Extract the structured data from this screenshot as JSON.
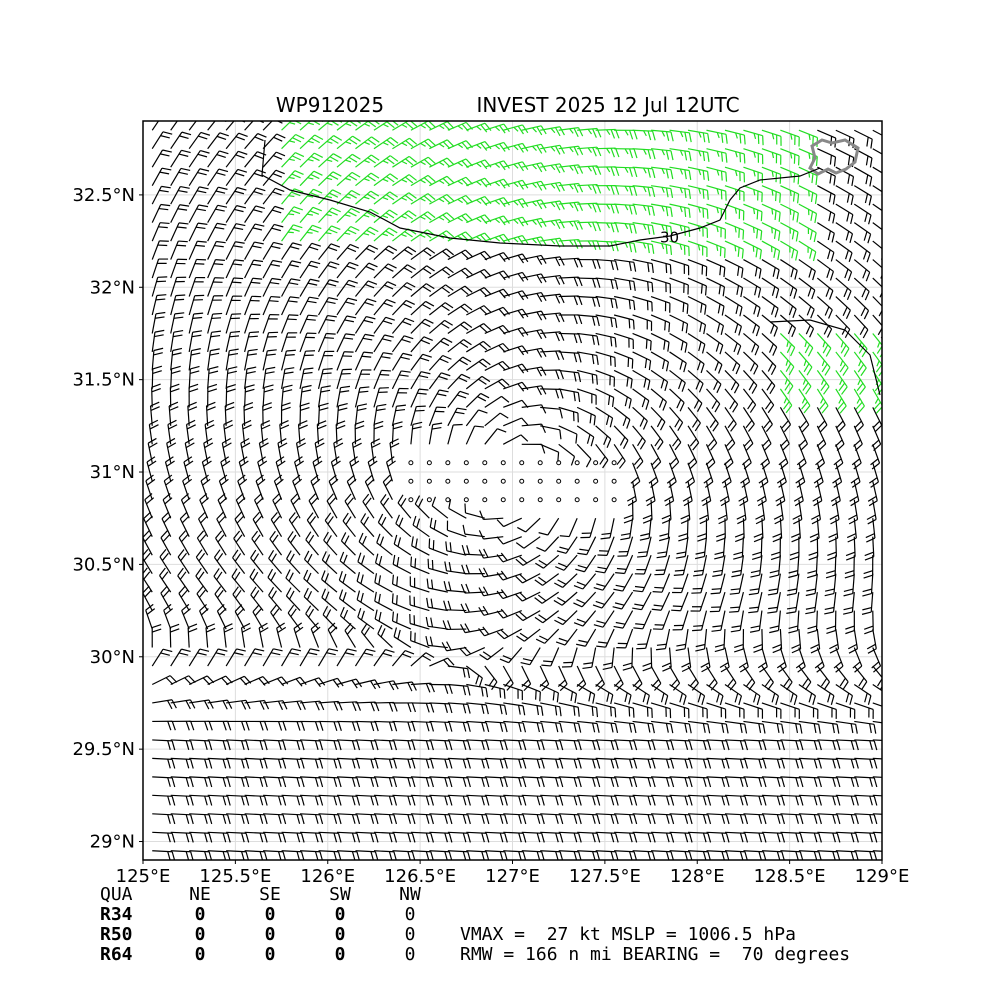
{
  "chart_data": {
    "type": "wind-barb-map",
    "title_left": "WP912025",
    "title_right": "INVEST 2025 12 Jul 12UTC",
    "xlim": [
      125.0,
      129.0
    ],
    "ylim": [
      28.9,
      32.9
    ],
    "x_ticks": [
      125.0,
      125.5,
      126.0,
      126.5,
      127.0,
      127.5,
      128.0,
      128.5,
      129.0
    ],
    "x_tick_labels": [
      "125°E",
      "125.5°E",
      "126°E",
      "126.5°E",
      "127°E",
      "127.5°E",
      "128°E",
      "128.5°E",
      "129°E"
    ],
    "y_ticks": [
      29.0,
      29.5,
      30.0,
      30.5,
      31.0,
      31.5,
      32.0,
      32.5
    ],
    "y_tick_labels": [
      "29°N",
      "29.5°N",
      "30°N",
      "30.5°N",
      "31°N",
      "31.5°N",
      "32°N",
      "32.5°N"
    ],
    "grid": true,
    "vortex_center": {
      "lon": 127.0,
      "lat": 30.98
    },
    "calm_region": {
      "lon_min": 126.25,
      "lon_max": 127.7,
      "lat_min": 30.8,
      "lat_max": 31.1
    },
    "barb_spacing_deg": 0.1,
    "contour": {
      "level": "30",
      "label_lon": 127.85,
      "label_lat": 32.27
    },
    "colors": {
      "barb": "#000000",
      "barb_strong": "#22dd22",
      "coast": "#888888",
      "contour": "#000000",
      "grid": "#dddddd"
    }
  },
  "quadrant_table": {
    "headers": [
      "QUA",
      "NE",
      "SE",
      "SW",
      "NW"
    ],
    "rows": [
      {
        "label": "R34",
        "values": [
          "0",
          "0",
          "0",
          "0"
        ]
      },
      {
        "label": "R50",
        "values": [
          "0",
          "0",
          "0",
          "0"
        ]
      },
      {
        "label": "R64",
        "values": [
          "0",
          "0",
          "0",
          "0"
        ]
      }
    ]
  },
  "stats": {
    "line1": "VMAX =  27 kt MSLP = 1006.5 hPa",
    "line2": "RMW = 166 n mi BEARING =  70 degrees"
  }
}
